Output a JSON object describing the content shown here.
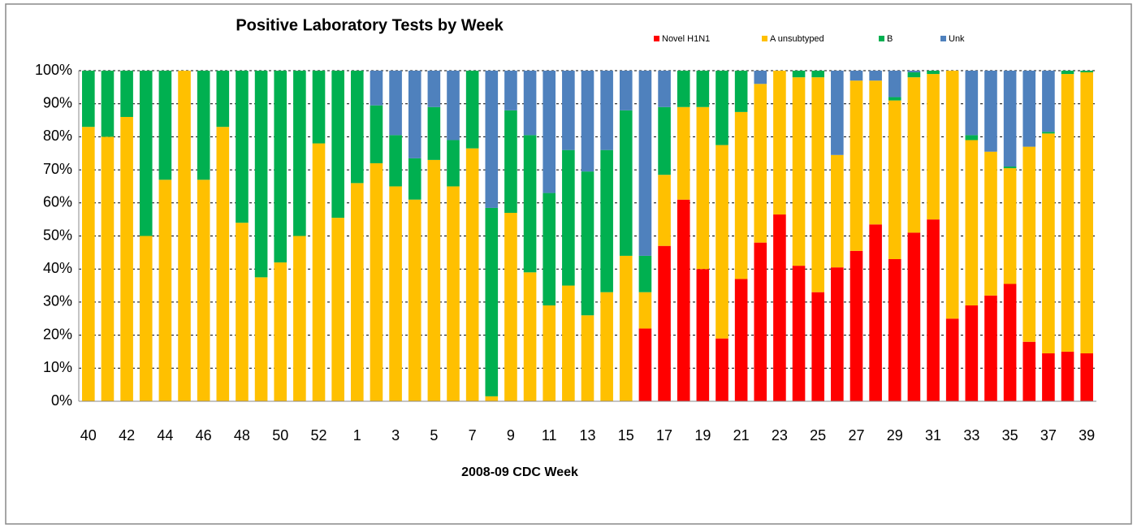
{
  "chart_data": {
    "type": "stacked_bar",
    "title": "Positive Laboratory Tests by Week",
    "x_label": "2008-09  CDC Week",
    "categories": [
      "40",
      null,
      "42",
      null,
      "44",
      null,
      "46",
      null,
      "48",
      null,
      "50",
      null,
      "52",
      null,
      "1",
      null,
      "3",
      null,
      "5",
      null,
      "7",
      null,
      "9",
      null,
      "11",
      null,
      "13",
      null,
      "15",
      null,
      "17",
      null,
      "19",
      null,
      "21",
      null,
      "23",
      null,
      "25",
      null,
      "27",
      null,
      "29",
      null,
      "31",
      null,
      "33",
      null,
      "35",
      null,
      "37",
      null,
      "39"
    ],
    "series": [
      {
        "name": "Novel H1N1",
        "color": "#ff0000",
        "values": [
          0,
          0,
          0,
          0,
          0,
          0,
          0,
          0,
          0,
          0,
          0,
          0,
          0,
          0,
          0,
          0,
          0,
          0,
          0,
          0,
          0,
          0,
          0,
          0,
          0,
          0,
          0,
          0,
          0,
          22,
          47,
          61,
          40,
          19,
          37,
          48,
          56.5,
          41,
          33,
          40.5,
          45.5,
          53.5,
          43,
          51,
          55,
          25,
          29,
          32,
          35.5,
          18,
          14.5,
          15,
          14.5
        ]
      },
      {
        "name": "A  unsubtyped",
        "color": "#ffc000",
        "values": [
          83,
          80,
          86,
          50,
          67,
          100,
          67,
          83,
          54,
          37.5,
          42,
          50,
          78,
          55.5,
          66,
          72,
          65,
          61,
          73,
          65,
          76.5,
          1.5,
          57,
          39,
          29,
          35,
          26,
          33,
          44,
          11,
          21.5,
          28,
          49,
          58.5,
          50.5,
          48,
          43.5,
          57,
          65,
          34,
          51.5,
          43.5,
          48,
          47,
          44,
          75,
          50,
          43.5,
          35,
          59,
          66.5,
          84,
          85
        ]
      },
      {
        "name": "B",
        "color": "#00b050",
        "values": [
          17,
          20,
          14,
          50,
          33,
          0,
          33,
          17,
          46,
          62.5,
          58,
          50,
          22,
          44.5,
          34,
          17.5,
          15.5,
          12.5,
          16,
          14,
          23.5,
          57,
          31,
          41.5,
          34,
          41,
          43.5,
          43,
          44,
          11,
          20.5,
          11,
          11,
          22.5,
          12.5,
          0,
          0,
          2,
          2,
          0,
          0,
          0,
          1,
          1.5,
          1,
          0,
          1.5,
          0,
          0.5,
          0,
          0.5,
          1,
          0.5
        ]
      },
      {
        "name": "Unk",
        "color": "#4f81bd",
        "values": [
          0,
          0,
          0,
          0,
          0,
          0,
          0,
          0,
          0,
          0,
          0,
          0,
          0,
          0,
          0,
          10.5,
          19.5,
          26.5,
          11,
          21,
          0,
          41.5,
          12,
          19.5,
          37,
          24,
          30.5,
          24,
          12,
          56,
          11,
          0,
          0,
          0,
          0,
          4,
          0,
          0,
          0,
          25.5,
          3,
          3,
          8,
          0.5,
          0,
          0,
          19.5,
          24.5,
          29,
          23,
          18.5,
          0,
          0
        ]
      }
    ],
    "ylim": [
      0,
      100
    ],
    "yticks": [
      {
        "value": 0,
        "label": "0%"
      },
      {
        "value": 10,
        "label": "10%"
      },
      {
        "value": 20,
        "label": "20%"
      },
      {
        "value": 30,
        "label": "30%"
      },
      {
        "value": 40,
        "label": "40%"
      },
      {
        "value": 50,
        "label": "50%"
      },
      {
        "value": 60,
        "label": "60%"
      },
      {
        "value": 70,
        "label": "70%"
      },
      {
        "value": 80,
        "label": "80%"
      },
      {
        "value": 90,
        "label": "90%"
      },
      {
        "value": 100,
        "label": "100%"
      }
    ],
    "grid": true,
    "legend": "top"
  }
}
